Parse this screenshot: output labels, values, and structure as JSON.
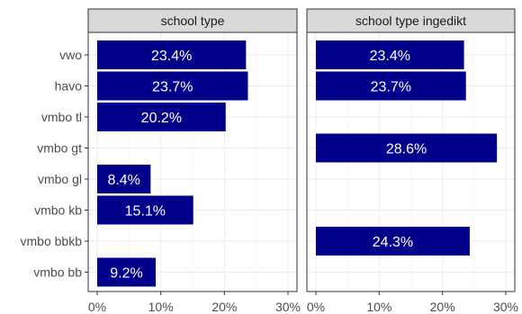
{
  "chart_data": {
    "type": "bar",
    "orientation": "horizontal",
    "categories": [
      "vwo",
      "havo",
      "vmbo tl",
      "vmbo gt",
      "vmbo gl",
      "vmbo kb",
      "vmbo bbkb",
      "vmbo bb"
    ],
    "xlim": [
      0,
      30
    ],
    "xticks": [
      0,
      10,
      20,
      30
    ],
    "xtick_labels": [
      "0%",
      "10%",
      "20%",
      "30%"
    ],
    "grid": true,
    "bar_color": "#00008b",
    "panels": [
      {
        "title": "school type",
        "values": [
          23.4,
          23.7,
          20.2,
          null,
          8.4,
          15.1,
          null,
          9.2
        ],
        "labels": [
          "23.4%",
          "23.7%",
          "20.2%",
          "",
          "8.4%",
          "15.1%",
          "",
          "9.2%"
        ]
      },
      {
        "title": "school type ingedikt",
        "values": [
          23.4,
          23.7,
          null,
          28.6,
          null,
          null,
          24.3,
          null
        ],
        "labels": [
          "23.4%",
          "23.7%",
          "",
          "28.6%",
          "",
          "",
          "24.3%",
          ""
        ]
      }
    ]
  }
}
